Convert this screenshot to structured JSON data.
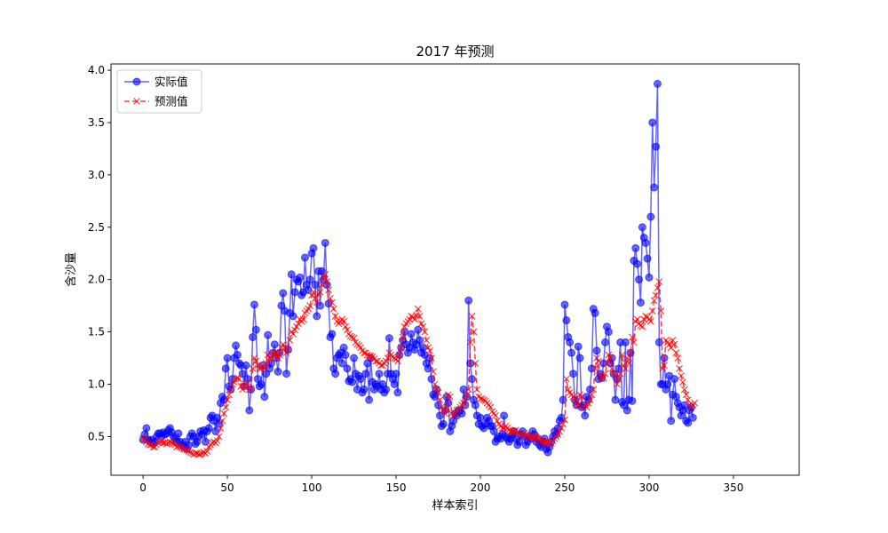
{
  "chart_data": {
    "type": "line",
    "title": "2017 年预测",
    "xlabel": "样本索引",
    "ylabel": "含沙量",
    "xlim": [
      -19,
      389
    ],
    "ylim": [
      0.13,
      4.06
    ],
    "xticks": [
      0,
      50,
      100,
      150,
      200,
      250,
      300,
      350
    ],
    "yticks": [
      0.5,
      1.0,
      1.5,
      2.0,
      2.5,
      3.0,
      3.5,
      4.0
    ],
    "xtick_labels": [
      "0",
      "50",
      "100",
      "150",
      "200",
      "250",
      "300",
      "350"
    ],
    "ytick_labels": [
      "0.5",
      "1.0",
      "1.5",
      "2.0",
      "2.5",
      "3.0",
      "3.5",
      "4.0"
    ],
    "grid": false,
    "legend_position": "upper-left",
    "series": [
      {
        "name": "实际值",
        "color": "#0000ff",
        "marker": "circle",
        "line_style": "solid",
        "x_start": 0,
        "values": [
          0.47,
          0.52,
          0.58,
          0.47,
          0.45,
          0.47,
          0.43,
          0.45,
          0.5,
          0.53,
          0.53,
          0.5,
          0.54,
          0.52,
          0.53,
          0.56,
          0.58,
          0.54,
          0.5,
          0.48,
          0.45,
          0.53,
          0.45,
          0.42,
          0.4,
          0.45,
          0.38,
          0.42,
          0.5,
          0.53,
          0.5,
          0.43,
          0.45,
          0.5,
          0.55,
          0.52,
          0.56,
          0.45,
          0.55,
          0.58,
          0.68,
          0.7,
          0.65,
          0.55,
          0.68,
          0.62,
          0.82,
          0.88,
          0.85,
          1.15,
          1.25,
          0.98,
          0.95,
          1.05,
          1.25,
          1.37,
          1.28,
          1.2,
          1.18,
          1.1,
          0.98,
          1.18,
          1.05,
          0.75,
          0.95,
          1.45,
          1.76,
          1.52,
          1.05,
          0.98,
          1.0,
          1.18,
          0.88,
          1.1,
          1.47,
          1.15,
          1.2,
          1.3,
          1.38,
          1.25,
          1.12,
          1.3,
          1.75,
          1.87,
          1.7,
          1.1,
          1.33,
          1.68,
          2.05,
          1.65,
          1.88,
          2.0,
          1.98,
          2.02,
          1.85,
          1.88,
          2.21,
          1.95,
          1.9,
          2.0,
          2.25,
          2.3,
          1.95,
          1.65,
          2.08,
          1.75,
          2.08,
          2.0,
          2.35,
          1.95,
          1.77,
          1.45,
          1.48,
          1.15,
          1.1,
          1.25,
          1.28,
          1.3,
          1.2,
          1.35,
          1.28,
          1.15,
          1.03,
          1.05,
          1.02,
          1.25,
          1.1,
          0.95,
          1.08,
          1.05,
          0.92,
          0.95,
          1.1,
          1.2,
          0.85,
          1.25,
          1.02,
          0.95,
          1.0,
          0.98,
          1.1,
          0.95,
          1.0,
          0.92,
          0.95,
          1.1,
          1.44,
          1.1,
          1.05,
          1.0,
          1.1,
          0.92,
          1.28,
          1.35,
          1.42,
          1.5,
          1.38,
          1.3,
          1.35,
          1.48,
          1.4,
          1.33,
          1.38,
          1.52,
          1.42,
          1.3,
          1.35,
          1.28,
          1.2,
          1.15,
          1.25,
          1.05,
          0.9,
          0.88,
          0.95,
          0.8,
          0.7,
          0.6,
          0.62,
          0.75,
          0.88,
          0.82,
          0.55,
          0.6,
          0.65,
          0.72,
          0.7,
          0.75,
          0.75,
          0.72,
          0.95,
          0.8,
          0.88,
          1.8,
          1.2,
          1.05,
          0.85,
          0.8,
          0.7,
          0.62,
          0.68,
          0.6,
          0.58,
          0.62,
          0.68,
          0.65,
          0.6,
          0.6,
          0.55,
          0.45,
          0.48,
          0.5,
          0.48,
          0.52,
          0.7,
          0.5,
          0.48,
          0.45,
          0.48,
          0.52,
          0.55,
          0.48,
          0.42,
          0.45,
          0.52,
          0.55,
          0.5,
          0.42,
          0.45,
          0.5,
          0.48,
          0.55,
          0.52,
          0.45,
          0.48,
          0.42,
          0.4,
          0.45,
          0.48,
          0.38,
          0.35,
          0.4,
          0.45,
          0.5,
          0.55,
          0.52,
          0.58,
          0.65,
          0.68,
          0.85,
          1.76,
          1.61,
          1.45,
          1.4,
          1.3,
          1.1,
          0.85,
          0.8,
          1.36,
          1.25,
          0.78,
          0.8,
          0.7,
          0.88,
          0.85,
          0.95,
          1.15,
          1.72,
          1.68,
          1.32,
          1.05,
          1.1,
          1.06,
          1.2,
          1.4,
          1.55,
          1.5,
          1.2,
          1.25,
          1.1,
          0.85,
          1.05,
          1.15,
          1.4,
          0.83,
          0.8,
          1.4,
          0.75,
          0.85,
          1.3,
          0.84,
          2.18,
          2.3,
          2.15,
          2.0,
          1.78,
          2.5,
          2.4,
          2.35,
          2.2,
          2.02,
          2.6,
          3.5,
          2.88,
          3.27,
          3.87,
          1.4,
          1.0,
          1.0,
          1.25,
          0.95,
          1.0,
          1.08,
          0.65,
          0.9,
          1.05,
          0.88,
          0.82,
          0.78,
          0.7,
          0.75,
          0.8,
          0.65,
          0.63,
          0.75,
          0.78,
          0.68
        ],
        "note_values": "每个样本对应 x = 0, 1, 2, ..."
      },
      {
        "name": "预测值",
        "color": "#ff0000",
        "marker": "x",
        "line_style": "dashed",
        "x_start": 0,
        "values": [
          0.48,
          0.47,
          0.45,
          0.43,
          0.42,
          0.42,
          0.4,
          0.4,
          0.42,
          0.44,
          0.45,
          0.45,
          0.44,
          0.44,
          0.43,
          0.44,
          0.45,
          0.44,
          0.43,
          0.42,
          0.4,
          0.41,
          0.4,
          0.39,
          0.38,
          0.38,
          0.37,
          0.36,
          0.35,
          0.34,
          0.33,
          0.34,
          0.34,
          0.33,
          0.33,
          0.34,
          0.35,
          0.34,
          0.36,
          0.4,
          0.42,
          0.44,
          0.45,
          0.44,
          0.46,
          0.5,
          0.58,
          0.65,
          0.72,
          0.78,
          0.85,
          0.9,
          0.95,
          1.0,
          1.02,
          1.05,
          1.06,
          1.05,
          0.98,
          0.95,
          0.98,
          1.0,
          1.02,
          0.95,
          0.96,
          1.15,
          1.25,
          1.22,
          1.18,
          1.15,
          1.15,
          1.17,
          1.15,
          1.2,
          1.28,
          1.25,
          1.25,
          1.28,
          1.3,
          1.3,
          1.25,
          1.28,
          1.35,
          1.38,
          1.35,
          1.3,
          1.33,
          1.42,
          1.5,
          1.48,
          1.52,
          1.55,
          1.58,
          1.62,
          1.6,
          1.62,
          1.68,
          1.7,
          1.72,
          1.75,
          1.85,
          1.88,
          1.82,
          1.78,
          1.86,
          1.88,
          1.95,
          2.02,
          2.05,
          1.98,
          1.9,
          1.82,
          1.78,
          1.72,
          1.65,
          1.6,
          1.58,
          1.6,
          1.62,
          1.6,
          1.55,
          1.52,
          1.48,
          1.46,
          1.45,
          1.44,
          1.4,
          1.38,
          1.37,
          1.35,
          1.32,
          1.3,
          1.3,
          1.28,
          1.27,
          1.27,
          1.26,
          1.24,
          1.22,
          1.22,
          1.2,
          1.18,
          1.18,
          1.2,
          1.22,
          1.25,
          1.3,
          1.28,
          1.26,
          1.25,
          1.24,
          1.22,
          1.28,
          1.35,
          1.45,
          1.55,
          1.58,
          1.6,
          1.62,
          1.65,
          1.64,
          1.62,
          1.66,
          1.72,
          1.65,
          1.58,
          1.55,
          1.5,
          1.42,
          1.35,
          1.32,
          1.25,
          1.12,
          1.0,
          0.95,
          0.92,
          0.85,
          0.78,
          0.75,
          0.72,
          0.78,
          0.9,
          0.88,
          0.72,
          0.7,
          0.72,
          0.75,
          0.76,
          0.78,
          0.8,
          0.82,
          0.85,
          0.9,
          0.95,
          1.4,
          1.65,
          1.5,
          1.2,
          0.95,
          0.88,
          0.86,
          0.86,
          0.85,
          0.84,
          0.82,
          0.8,
          0.78,
          0.74,
          0.72,
          0.7,
          0.65,
          0.62,
          0.6,
          0.58,
          0.58,
          0.6,
          0.58,
          0.56,
          0.55,
          0.55,
          0.55,
          0.56,
          0.54,
          0.52,
          0.51,
          0.52,
          0.53,
          0.52,
          0.5,
          0.49,
          0.5,
          0.49,
          0.5,
          0.5,
          0.48,
          0.47,
          0.46,
          0.45,
          0.45,
          0.45,
          0.44,
          0.43,
          0.44,
          0.46,
          0.48,
          0.5,
          0.52,
          0.55,
          0.58,
          0.62,
          0.66,
          1.05,
          0.95,
          0.92,
          0.9,
          0.88,
          0.86,
          0.82,
          0.8,
          0.9,
          0.88,
          0.78,
          0.8,
          0.78,
          0.82,
          0.85,
          0.9,
          0.95,
          1.15,
          1.25,
          1.22,
          1.08,
          1.05,
          1.06,
          1.1,
          1.2,
          1.28,
          1.25,
          1.15,
          1.1,
          1.08,
          1.0,
          1.05,
          1.1,
          1.28,
          1.18,
          1.15,
          1.25,
          1.2,
          1.3,
          1.45,
          1.4,
          1.6,
          1.62,
          1.58,
          1.56,
          1.55,
          1.62,
          1.65,
          1.64,
          1.62,
          1.6,
          1.7,
          1.8,
          1.85,
          1.92,
          1.98,
          1.7,
          1.15,
          1.18,
          1.42,
          1.4,
          1.38,
          1.35,
          1.42,
          1.38,
          1.3,
          1.25,
          1.15,
          1.08,
          1.02,
          0.95,
          0.9,
          0.85,
          0.8,
          0.78,
          0.8,
          0.82
        ],
        "note_values": "每个样本对应 x = 0, 1, 2, ..."
      }
    ]
  }
}
